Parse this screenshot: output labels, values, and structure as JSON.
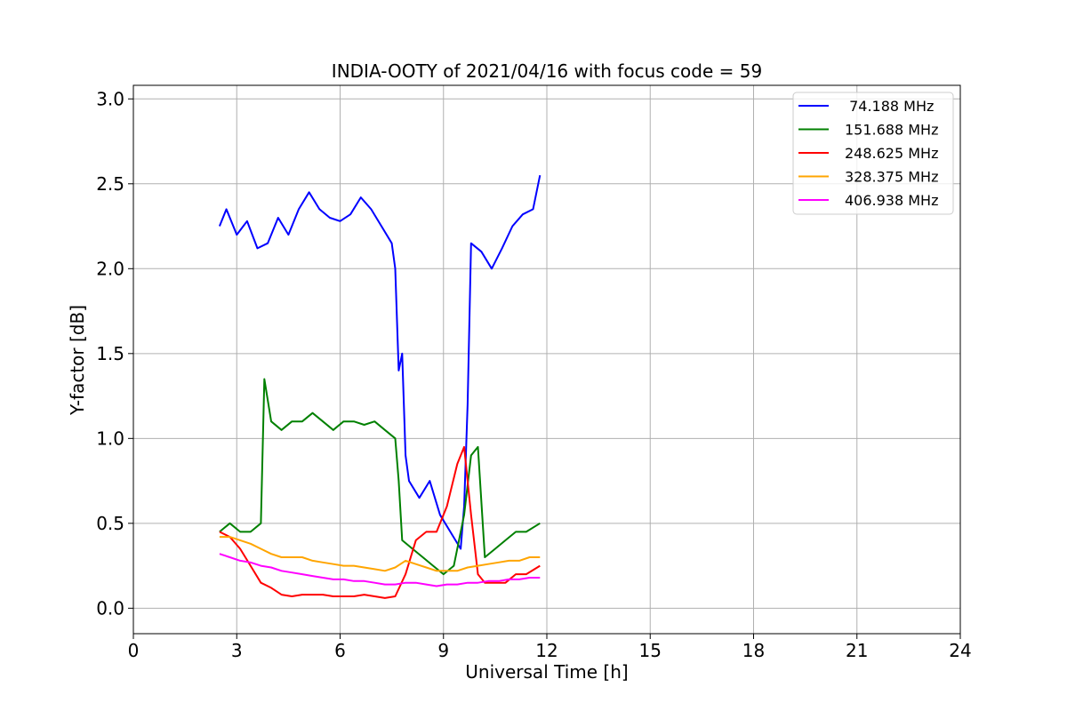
{
  "chart_data": {
    "type": "line",
    "title": "INDIA-OOTY of 2021/04/16 with focus code = 59",
    "xlabel": "Universal Time [h]",
    "ylabel": "Y-factor [dB]",
    "xlim": [
      0,
      24
    ],
    "ylim": [
      -0.15,
      3.08
    ],
    "xticks": [
      0,
      3,
      6,
      9,
      12,
      15,
      18,
      21,
      24
    ],
    "yticks": [
      0.0,
      0.5,
      1.0,
      1.5,
      2.0,
      2.5,
      3.0
    ],
    "xtick_labels": [
      "0",
      "3",
      "6",
      "9",
      "12",
      "15",
      "18",
      "21",
      "24"
    ],
    "ytick_labels": [
      "0.0",
      "0.5",
      "1.0",
      "1.5",
      "2.0",
      "2.5",
      "3.0"
    ],
    "grid": true,
    "legend_position": "top-right",
    "series": [
      {
        "name": " 74.188 MHz",
        "color": "#0000ff",
        "x": [
          2.5,
          2.7,
          3.0,
          3.3,
          3.6,
          3.9,
          4.2,
          4.5,
          4.8,
          5.1,
          5.4,
          5.7,
          6.0,
          6.3,
          6.6,
          6.9,
          7.2,
          7.5,
          7.6,
          7.7,
          7.8,
          7.9,
          8.0,
          8.3,
          8.6,
          8.9,
          9.2,
          9.5,
          9.6,
          9.7,
          9.8,
          10.1,
          10.4,
          10.7,
          11.0,
          11.3,
          11.6,
          11.8
        ],
        "y": [
          2.25,
          2.35,
          2.2,
          2.28,
          2.12,
          2.15,
          2.3,
          2.2,
          2.35,
          2.45,
          2.35,
          2.3,
          2.28,
          2.32,
          2.42,
          2.35,
          2.25,
          2.15,
          2.0,
          1.4,
          1.5,
          0.9,
          0.75,
          0.65,
          0.75,
          0.55,
          0.45,
          0.35,
          0.6,
          1.2,
          2.15,
          2.1,
          2.0,
          2.12,
          2.25,
          2.32,
          2.35,
          2.55
        ]
      },
      {
        "name": "151.688 MHz",
        "color": "#008000",
        "x": [
          2.5,
          2.8,
          3.1,
          3.4,
          3.7,
          3.8,
          4.0,
          4.3,
          4.6,
          4.9,
          5.2,
          5.5,
          5.8,
          6.1,
          6.4,
          6.7,
          7.0,
          7.3,
          7.6,
          7.7,
          7.8,
          8.1,
          8.4,
          8.7,
          9.0,
          9.3,
          9.6,
          9.8,
          10.0,
          10.2,
          10.5,
          10.8,
          11.1,
          11.4,
          11.8
        ],
        "y": [
          0.45,
          0.5,
          0.45,
          0.45,
          0.5,
          1.35,
          1.1,
          1.05,
          1.1,
          1.1,
          1.15,
          1.1,
          1.05,
          1.1,
          1.1,
          1.08,
          1.1,
          1.05,
          1.0,
          0.75,
          0.4,
          0.35,
          0.3,
          0.25,
          0.2,
          0.25,
          0.55,
          0.9,
          0.95,
          0.3,
          0.35,
          0.4,
          0.45,
          0.45,
          0.5
        ]
      },
      {
        "name": "248.625 MHz",
        "color": "#ff0000",
        "x": [
          2.5,
          2.8,
          3.1,
          3.4,
          3.7,
          4.0,
          4.3,
          4.6,
          4.9,
          5.2,
          5.5,
          5.8,
          6.1,
          6.4,
          6.7,
          7.0,
          7.3,
          7.6,
          7.9,
          8.2,
          8.5,
          8.8,
          9.1,
          9.4,
          9.6,
          9.8,
          10.0,
          10.2,
          10.5,
          10.8,
          11.1,
          11.4,
          11.8
        ],
        "y": [
          0.45,
          0.42,
          0.35,
          0.25,
          0.15,
          0.12,
          0.08,
          0.07,
          0.08,
          0.08,
          0.08,
          0.07,
          0.07,
          0.07,
          0.08,
          0.07,
          0.06,
          0.07,
          0.2,
          0.4,
          0.45,
          0.45,
          0.6,
          0.85,
          0.95,
          0.55,
          0.2,
          0.15,
          0.15,
          0.15,
          0.2,
          0.2,
          0.25
        ]
      },
      {
        "name": "328.375 MHz",
        "color": "#ffa500",
        "x": [
          2.5,
          2.8,
          3.1,
          3.4,
          3.7,
          4.0,
          4.3,
          4.6,
          4.9,
          5.2,
          5.5,
          5.8,
          6.1,
          6.4,
          6.7,
          7.0,
          7.3,
          7.6,
          7.9,
          8.2,
          8.5,
          8.8,
          9.1,
          9.4,
          9.7,
          10.0,
          10.3,
          10.6,
          10.9,
          11.2,
          11.5,
          11.8
        ],
        "y": [
          0.42,
          0.42,
          0.4,
          0.38,
          0.35,
          0.32,
          0.3,
          0.3,
          0.3,
          0.28,
          0.27,
          0.26,
          0.25,
          0.25,
          0.24,
          0.23,
          0.22,
          0.24,
          0.28,
          0.26,
          0.24,
          0.22,
          0.22,
          0.22,
          0.24,
          0.25,
          0.26,
          0.27,
          0.28,
          0.28,
          0.3,
          0.3
        ]
      },
      {
        "name": "406.938 MHz",
        "color": "#ff00ff",
        "x": [
          2.5,
          2.8,
          3.1,
          3.4,
          3.7,
          4.0,
          4.3,
          4.6,
          4.9,
          5.2,
          5.5,
          5.8,
          6.1,
          6.4,
          6.7,
          7.0,
          7.3,
          7.6,
          7.9,
          8.2,
          8.5,
          8.8,
          9.1,
          9.4,
          9.7,
          10.0,
          10.3,
          10.6,
          10.9,
          11.2,
          11.5,
          11.8
        ],
        "y": [
          0.32,
          0.3,
          0.28,
          0.27,
          0.25,
          0.24,
          0.22,
          0.21,
          0.2,
          0.19,
          0.18,
          0.17,
          0.17,
          0.16,
          0.16,
          0.15,
          0.14,
          0.14,
          0.15,
          0.15,
          0.14,
          0.13,
          0.14,
          0.14,
          0.15,
          0.15,
          0.16,
          0.16,
          0.17,
          0.17,
          0.18,
          0.18
        ]
      }
    ]
  }
}
